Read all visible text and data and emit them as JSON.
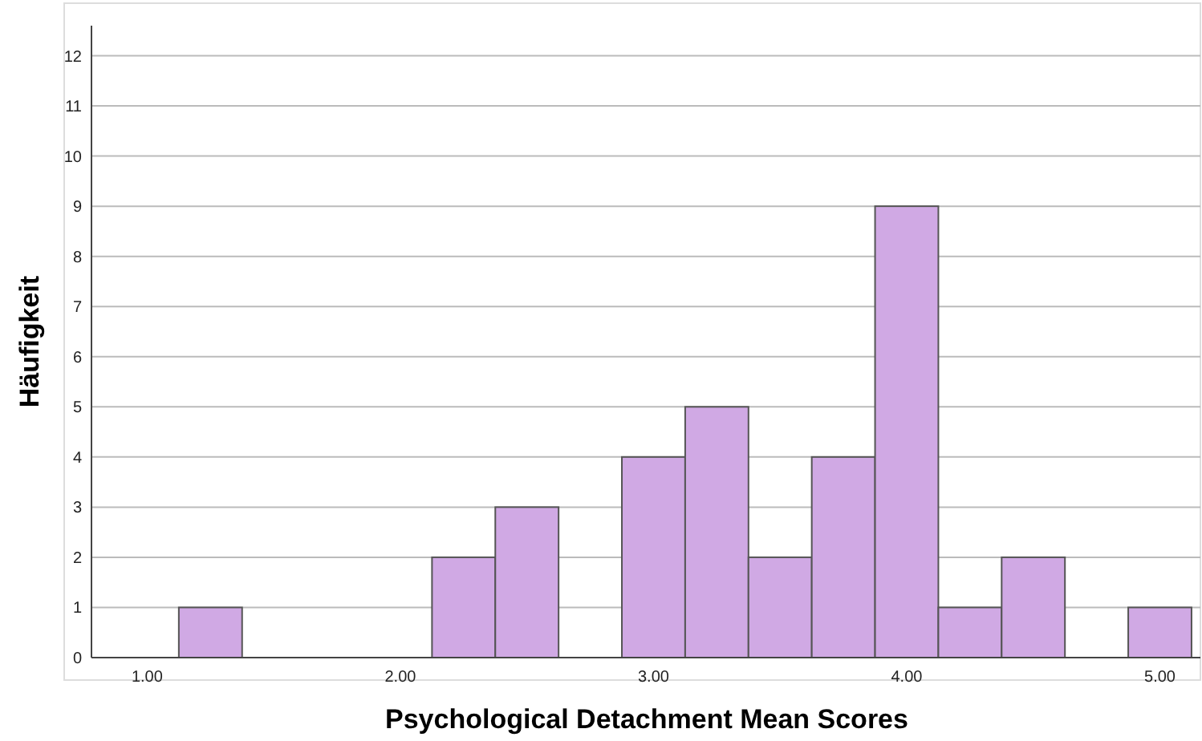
{
  "chart_data": {
    "type": "histogram",
    "xlabel": "Psychological Detachment Mean Scores",
    "ylabel": "Häufigkeit",
    "color": "#d0a9e4",
    "bins": [
      1.125,
      1.375,
      1.625,
      1.875,
      2.125,
      2.375,
      2.625,
      2.875,
      3.125,
      3.375,
      3.625,
      3.875,
      4.125,
      4.375,
      4.625,
      4.875,
      5.125
    ],
    "values": [
      1,
      0,
      0,
      0,
      2,
      3,
      0,
      4,
      5,
      2,
      4,
      9,
      1,
      2,
      0,
      1
    ],
    "xlim": [
      0.78,
      5.16
    ],
    "ylim": [
      0,
      12.6
    ],
    "xticks": [
      {
        "value": 1,
        "label": "1.00"
      },
      {
        "value": 2,
        "label": "2.00"
      },
      {
        "value": 3,
        "label": "3.00"
      },
      {
        "value": 4,
        "label": "4.00"
      },
      {
        "value": 5,
        "label": "5.00"
      }
    ],
    "yticks": [
      0,
      1,
      2,
      3,
      4,
      5,
      6,
      7,
      8,
      9,
      10,
      11,
      12
    ],
    "grid": "y"
  }
}
